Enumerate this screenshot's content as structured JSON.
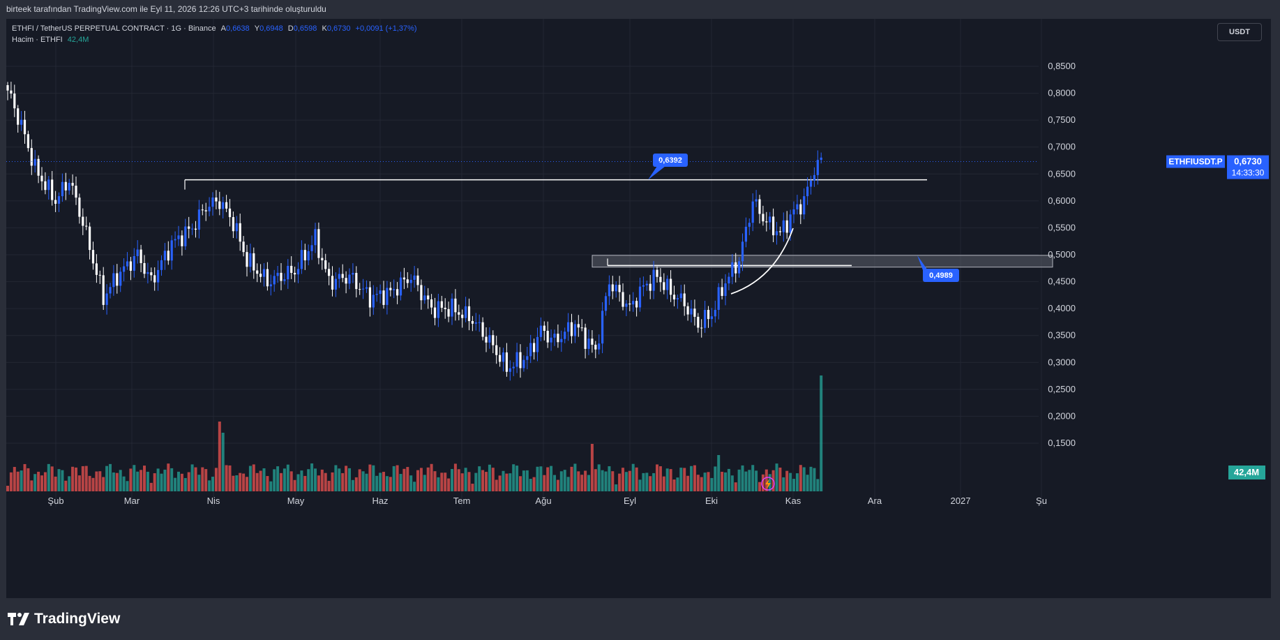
{
  "header": {
    "attribution": "birteek tarafından TradingView.com ile Eyl 11, 2026 12:26 UTC+3 tarihinde oluşturuldu"
  },
  "legend": {
    "symbol": "ETHFI / TetherUS PERPETUAL CONTRACT · 1G · Binance",
    "open_label": "A",
    "open": "0,6638",
    "high_label": "Y",
    "high": "0,6948",
    "low_label": "D",
    "low": "0,6598",
    "close_label": "K",
    "close": "0,6730",
    "change": "+0,0091 (+1,37%)",
    "volume_label": "Hacim · ETHFI",
    "volume": "42,4M"
  },
  "currency_button": "USDT",
  "brand": "TradingView",
  "colors": {
    "up": "#2962ff",
    "down": "#ffffff",
    "vol_up": "#26a69a",
    "vol_down": "#ef5350",
    "background": "#161a25",
    "price_tag": "#2962ff",
    "volume_tag": "#26a69a"
  },
  "chart_data": {
    "type": "candlestick",
    "symbol": "ETHFIUSDT.P",
    "price_axis": {
      "ticks": [
        "0,8500",
        "0,8000",
        "0,7500",
        "0,7000",
        "0,6500",
        "0,6000",
        "0,5500",
        "0,5000",
        "0,4500",
        "0,4000",
        "0,3500",
        "0,3000",
        "0,2500",
        "0,2000",
        "0,1500"
      ],
      "min": 0.1,
      "max": 0.9
    },
    "time_axis": [
      "Şub",
      "Mar",
      "Nis",
      "May",
      "Haz",
      "Tem",
      "Ağu",
      "Eyl",
      "Eki",
      "Kas",
      "Ara",
      "2027",
      "Şu"
    ],
    "last_price": {
      "label": "ETHFIUSDT.P",
      "value": "0,6730",
      "countdown": "14:33:30"
    },
    "volume_label": "42,4M",
    "annotations": [
      {
        "type": "horizontal_line",
        "value": 0.6392,
        "label": "0,6392",
        "from": "Mar",
        "to": "Eki"
      },
      {
        "type": "rectangle_zone",
        "top": 0.4989,
        "bottom": 0.477,
        "label": "0,4989",
        "from": "Ağu",
        "to": "Ara"
      },
      {
        "type": "horizontal_line",
        "value": 0.48,
        "from": "Tem",
        "to": "Eyl"
      },
      {
        "type": "curve",
        "description": "upward parabolic arc"
      }
    ],
    "key_prices": {
      "start_open": 0.815,
      "feb_low": 0.38,
      "mar_high": 0.6392,
      "jun_low": 0.267,
      "aug_low": 0.35,
      "sep_high": 0.723,
      "last": 0.673
    }
  }
}
